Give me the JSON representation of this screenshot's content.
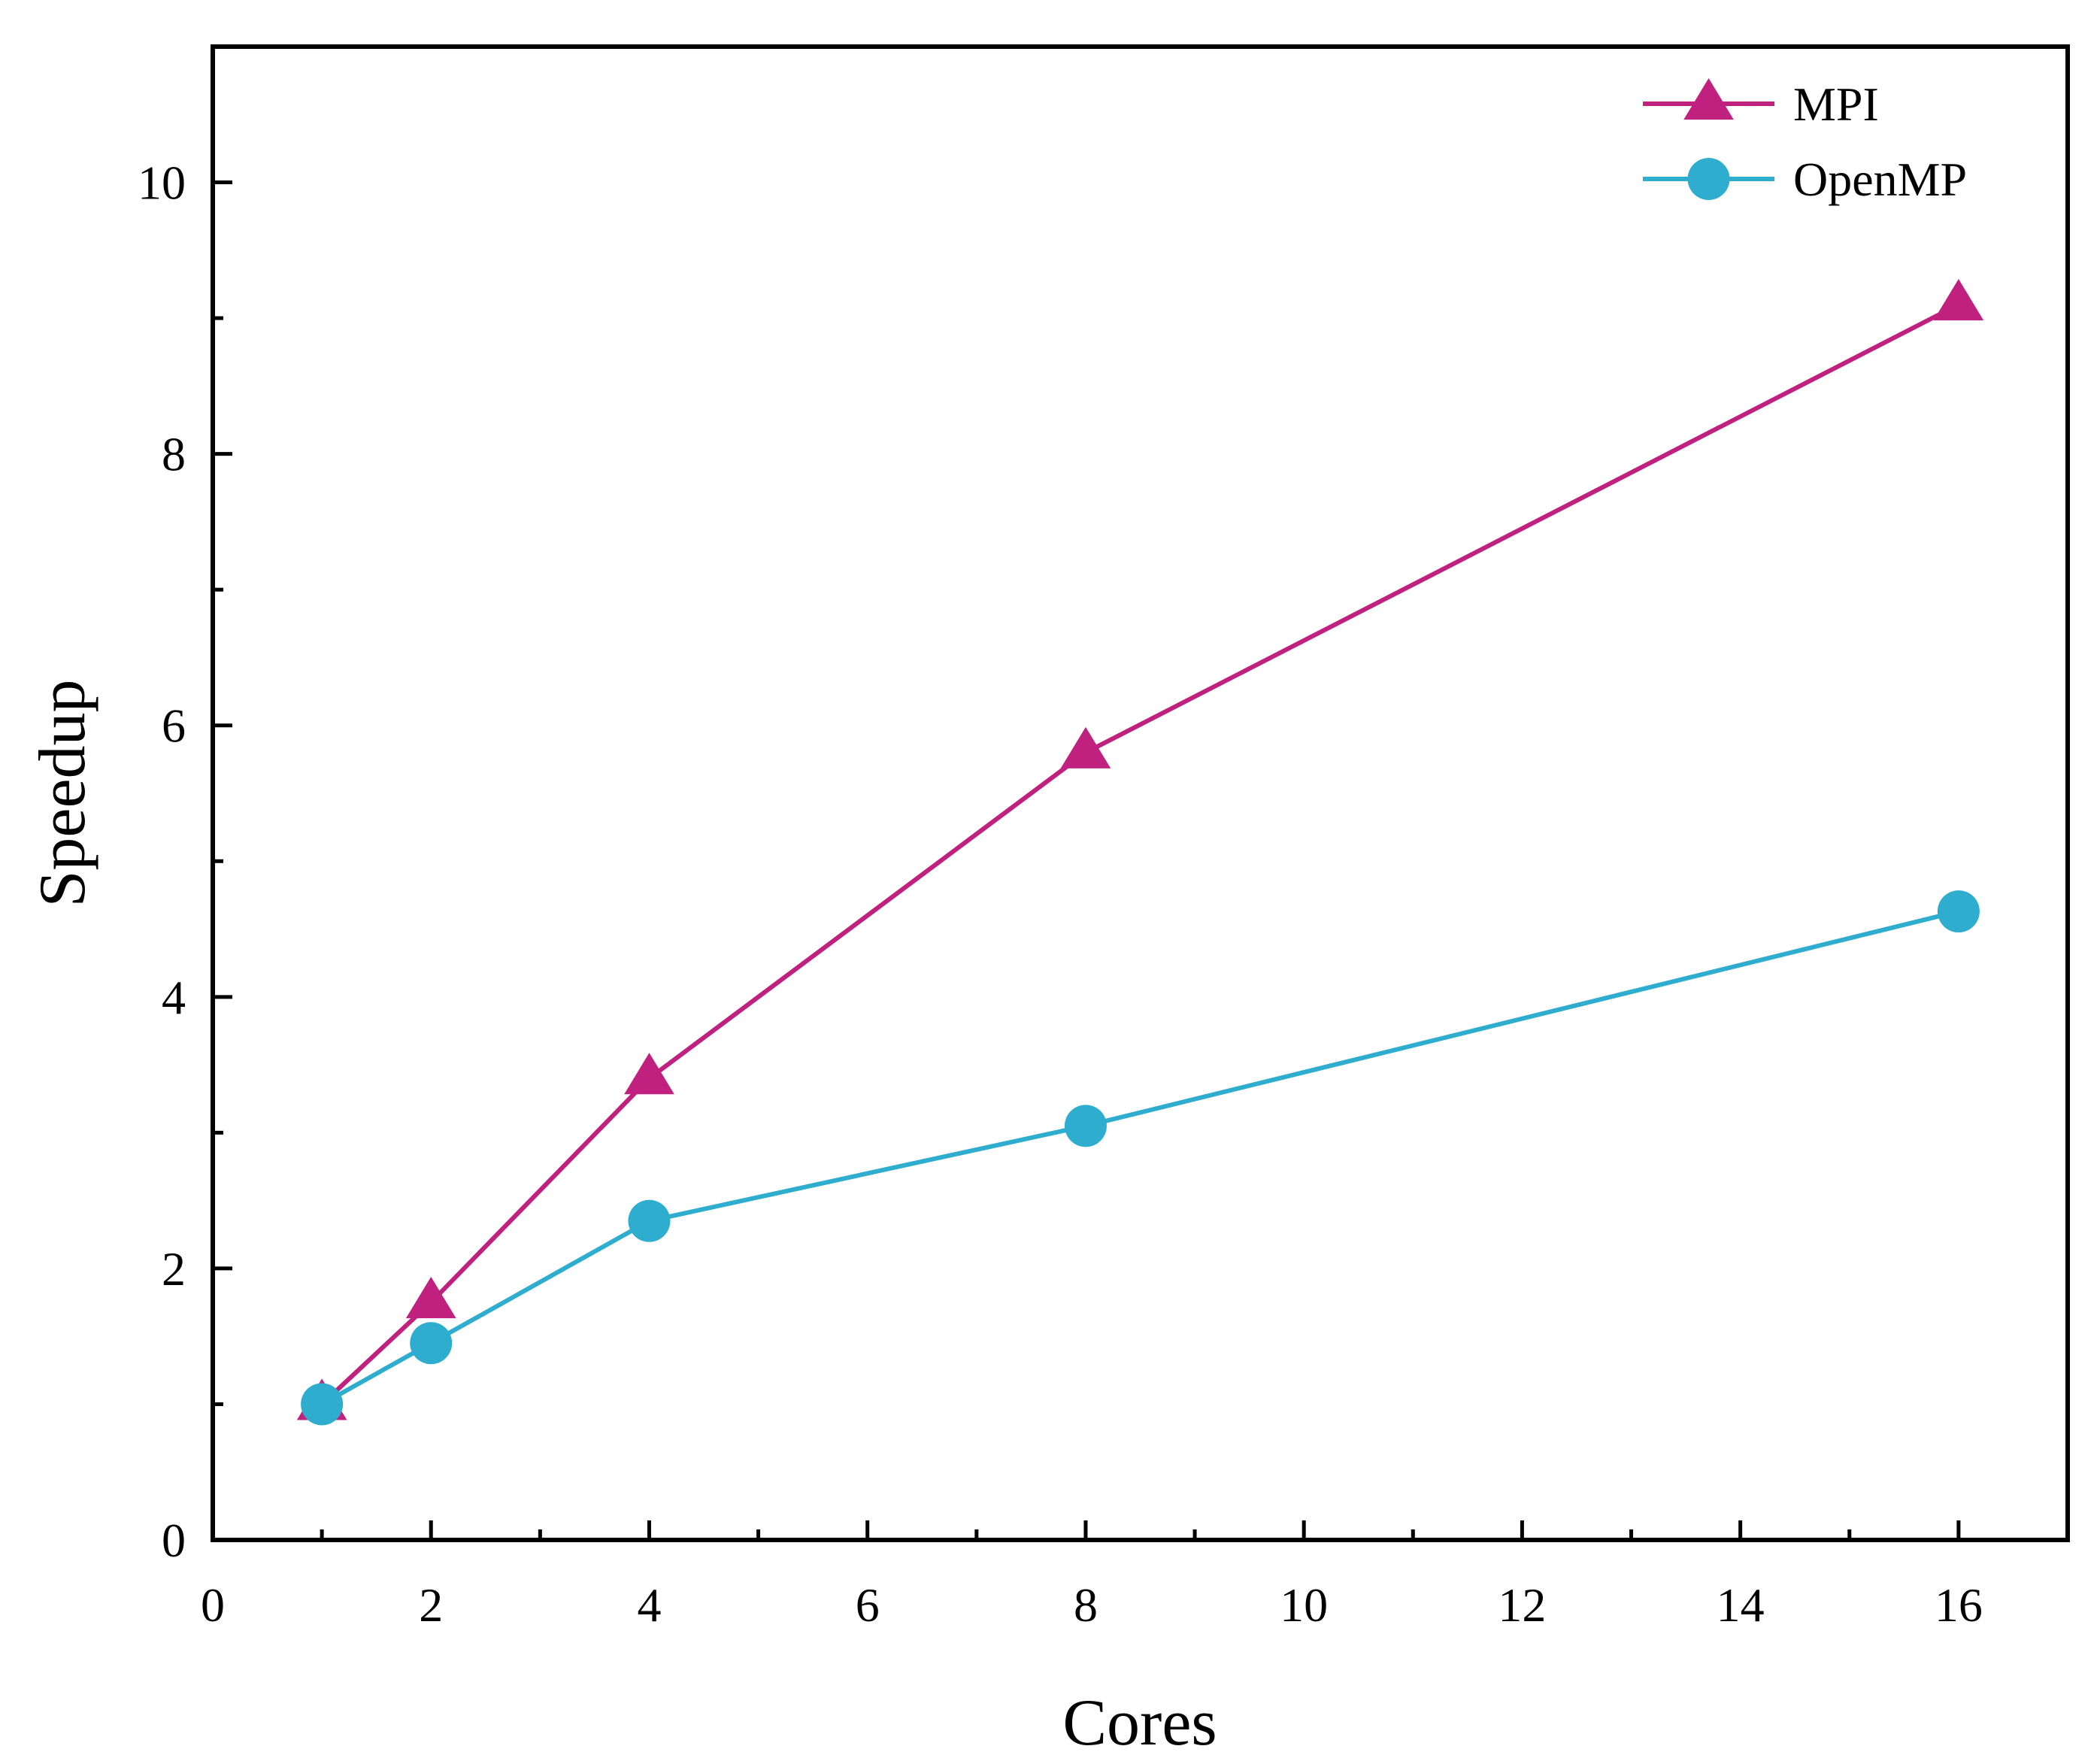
{
  "chart_data": {
    "type": "line",
    "xlabel": "Cores",
    "ylabel": "Speedup",
    "xlim": [
      0,
      17
    ],
    "ylim": [
      0,
      11
    ],
    "xticks": [
      0,
      2,
      4,
      6,
      8,
      10,
      12,
      14,
      16
    ],
    "yticks": [
      0,
      2,
      4,
      6,
      8,
      10
    ],
    "xtick_labels": [
      "0",
      "2",
      "4",
      "6",
      "8",
      "10",
      "12",
      "14",
      "16"
    ],
    "ytick_labels": [
      "0",
      "2",
      "4",
      "6",
      "8",
      "10"
    ],
    "x_minor_step": 1,
    "y_minor_step": 1,
    "legend_position": "top-right",
    "series": [
      {
        "name": "MPI",
        "marker": "triangle",
        "color": "#c0217f",
        "x": [
          1,
          2,
          4,
          8,
          16
        ],
        "values": [
          1.0,
          1.75,
          3.4,
          5.8,
          9.1
        ]
      },
      {
        "name": "OpenMP",
        "marker": "circle",
        "color": "#2eadcf",
        "x": [
          1,
          2,
          4,
          8,
          16
        ],
        "values": [
          1.0,
          1.45,
          2.35,
          3.05,
          4.63
        ]
      }
    ]
  }
}
